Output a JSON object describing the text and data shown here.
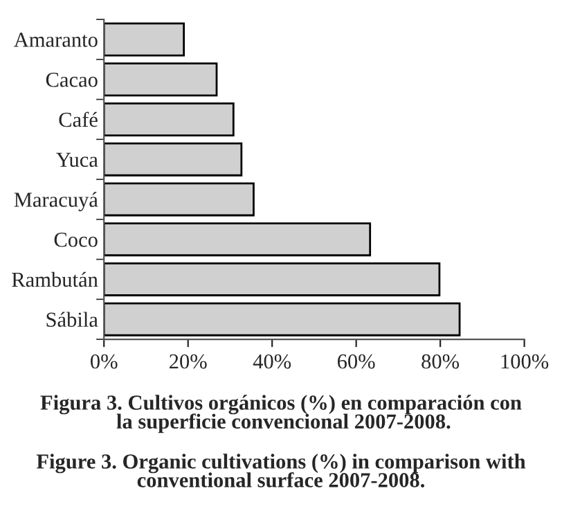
{
  "chart_data": {
    "type": "bar",
    "orientation": "horizontal",
    "categories": [
      "Amaranto",
      "Cacao",
      "Café",
      "Yuca",
      "Maracuyá",
      "Coco",
      "Rambután",
      "Sábila"
    ],
    "values": [
      19.0,
      26.8,
      30.8,
      32.7,
      35.6,
      63.3,
      79.8,
      84.6
    ],
    "color": "#d0d0d0",
    "xlim": [
      0,
      100
    ],
    "xticks": [
      {
        "value": 0,
        "label": "0%"
      },
      {
        "value": 20,
        "label": "20%"
      },
      {
        "value": 40,
        "label": "40%"
      },
      {
        "value": 60,
        "label": "60%"
      },
      {
        "value": 80,
        "label": "80%"
      },
      {
        "value": 100,
        "label": "100%"
      }
    ],
    "annotations": [
      "Figura 3. Cultivos orgánicos (%) en comparación con\n la superficie convencional 2007-2008.",
      "Figure 3. Organic cultivations (%) in comparison with\nconventional surface 2007-2008."
    ]
  }
}
